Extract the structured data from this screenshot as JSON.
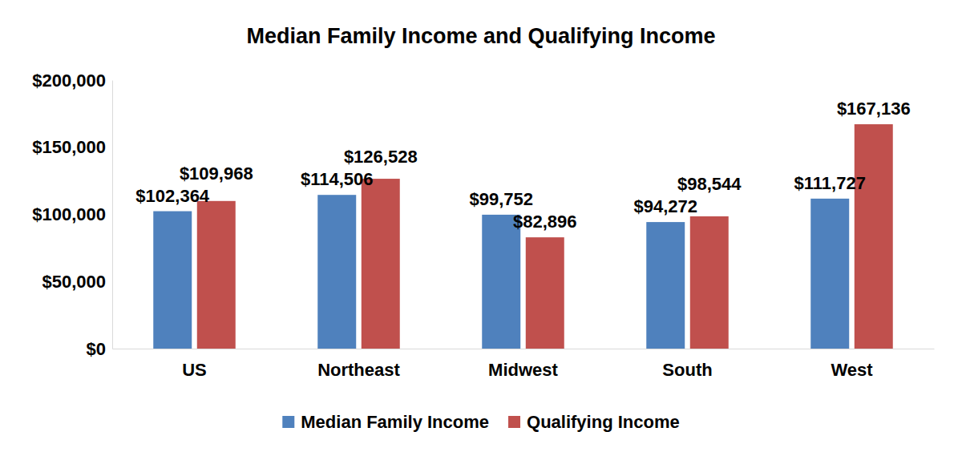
{
  "chart_data": {
    "type": "bar",
    "title": "Median Family Income and Qualifying Income",
    "categories": [
      "US",
      "Northeast",
      "Midwest",
      "South",
      "West"
    ],
    "series": [
      {
        "name": "Median Family Income",
        "color": "#4f81bd",
        "values": [
          102364,
          114506,
          99752,
          94272,
          111727
        ],
        "value_labels": [
          "$102,364",
          "$114,506",
          "$99,752",
          "$94,272",
          "$111,727"
        ]
      },
      {
        "name": "Qualifying Income",
        "color": "#c0504d",
        "values": [
          109968,
          126528,
          82896,
          98544,
          167136
        ],
        "value_labels": [
          "$109,968",
          "$126,528",
          "$82,896",
          "$98,544",
          "$167,136"
        ]
      }
    ],
    "ylim": [
      0,
      200000
    ],
    "yticks": [
      {
        "value": 0,
        "label": "$0"
      },
      {
        "value": 50000,
        "label": "$50,000"
      },
      {
        "value": 100000,
        "label": "$100,000"
      },
      {
        "value": 150000,
        "label": "$150,000"
      },
      {
        "value": 200000,
        "label": "$200,000"
      }
    ],
    "grid": false,
    "legend": "bottom",
    "data_labels": true
  }
}
